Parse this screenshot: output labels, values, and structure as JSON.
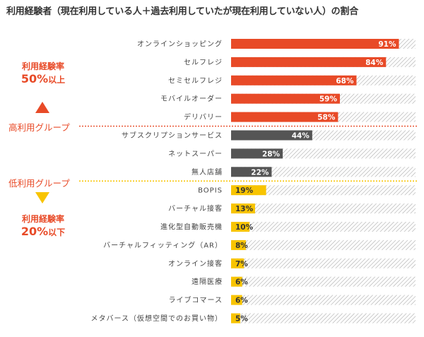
{
  "title": "利用経験者（現在利用している人＋過去利用していたが現在利用していない人）の割合",
  "groups": {
    "high_label": "高利用グループ",
    "low_label": "低利用グループ",
    "high_rate_line1": "利用経験率",
    "high_rate_value": "50%",
    "high_rate_suffix": "以上",
    "low_rate_line1": "利用経験率",
    "low_rate_value": "20%",
    "low_rate_suffix": "以下"
  },
  "colors": {
    "high": "#e84a27",
    "mid": "#555555",
    "low": "#f8c400",
    "hatch": "#aaaaaa",
    "divider": "#e84a27",
    "divider_low": "#f8c400"
  },
  "chart_data": {
    "type": "bar",
    "orientation": "horizontal",
    "xlim": [
      0,
      100
    ],
    "categories": [
      "オンラインショッピング",
      "セルフレジ",
      "セミセルフレジ",
      "モバイルオーダー",
      "デリバリー",
      "サブスクリプションサービス",
      "ネットスーパー",
      "無人店舗",
      "BOPIS",
      "バーチャル接客",
      "進化型自動販売機",
      "バーチャルフィッティング（AR）",
      "オンライン接客",
      "遠隔医療",
      "ライブコマース",
      "メタバース（仮想空間でのお買い物）"
    ],
    "values": [
      91,
      84,
      68,
      59,
      58,
      44,
      28,
      22,
      19,
      13,
      10,
      8,
      7,
      6,
      6,
      5
    ],
    "value_labels": [
      "91%",
      "84%",
      "68%",
      "59%",
      "58%",
      "44%",
      "28%",
      "22%",
      "19%",
      "13%",
      "10%",
      "8%",
      "7%",
      "6%",
      "6%",
      "5%"
    ],
    "groups": [
      "high",
      "high",
      "high",
      "high",
      "high",
      "mid",
      "mid",
      "mid",
      "low",
      "low",
      "low",
      "low",
      "low",
      "low",
      "low",
      "low"
    ]
  }
}
